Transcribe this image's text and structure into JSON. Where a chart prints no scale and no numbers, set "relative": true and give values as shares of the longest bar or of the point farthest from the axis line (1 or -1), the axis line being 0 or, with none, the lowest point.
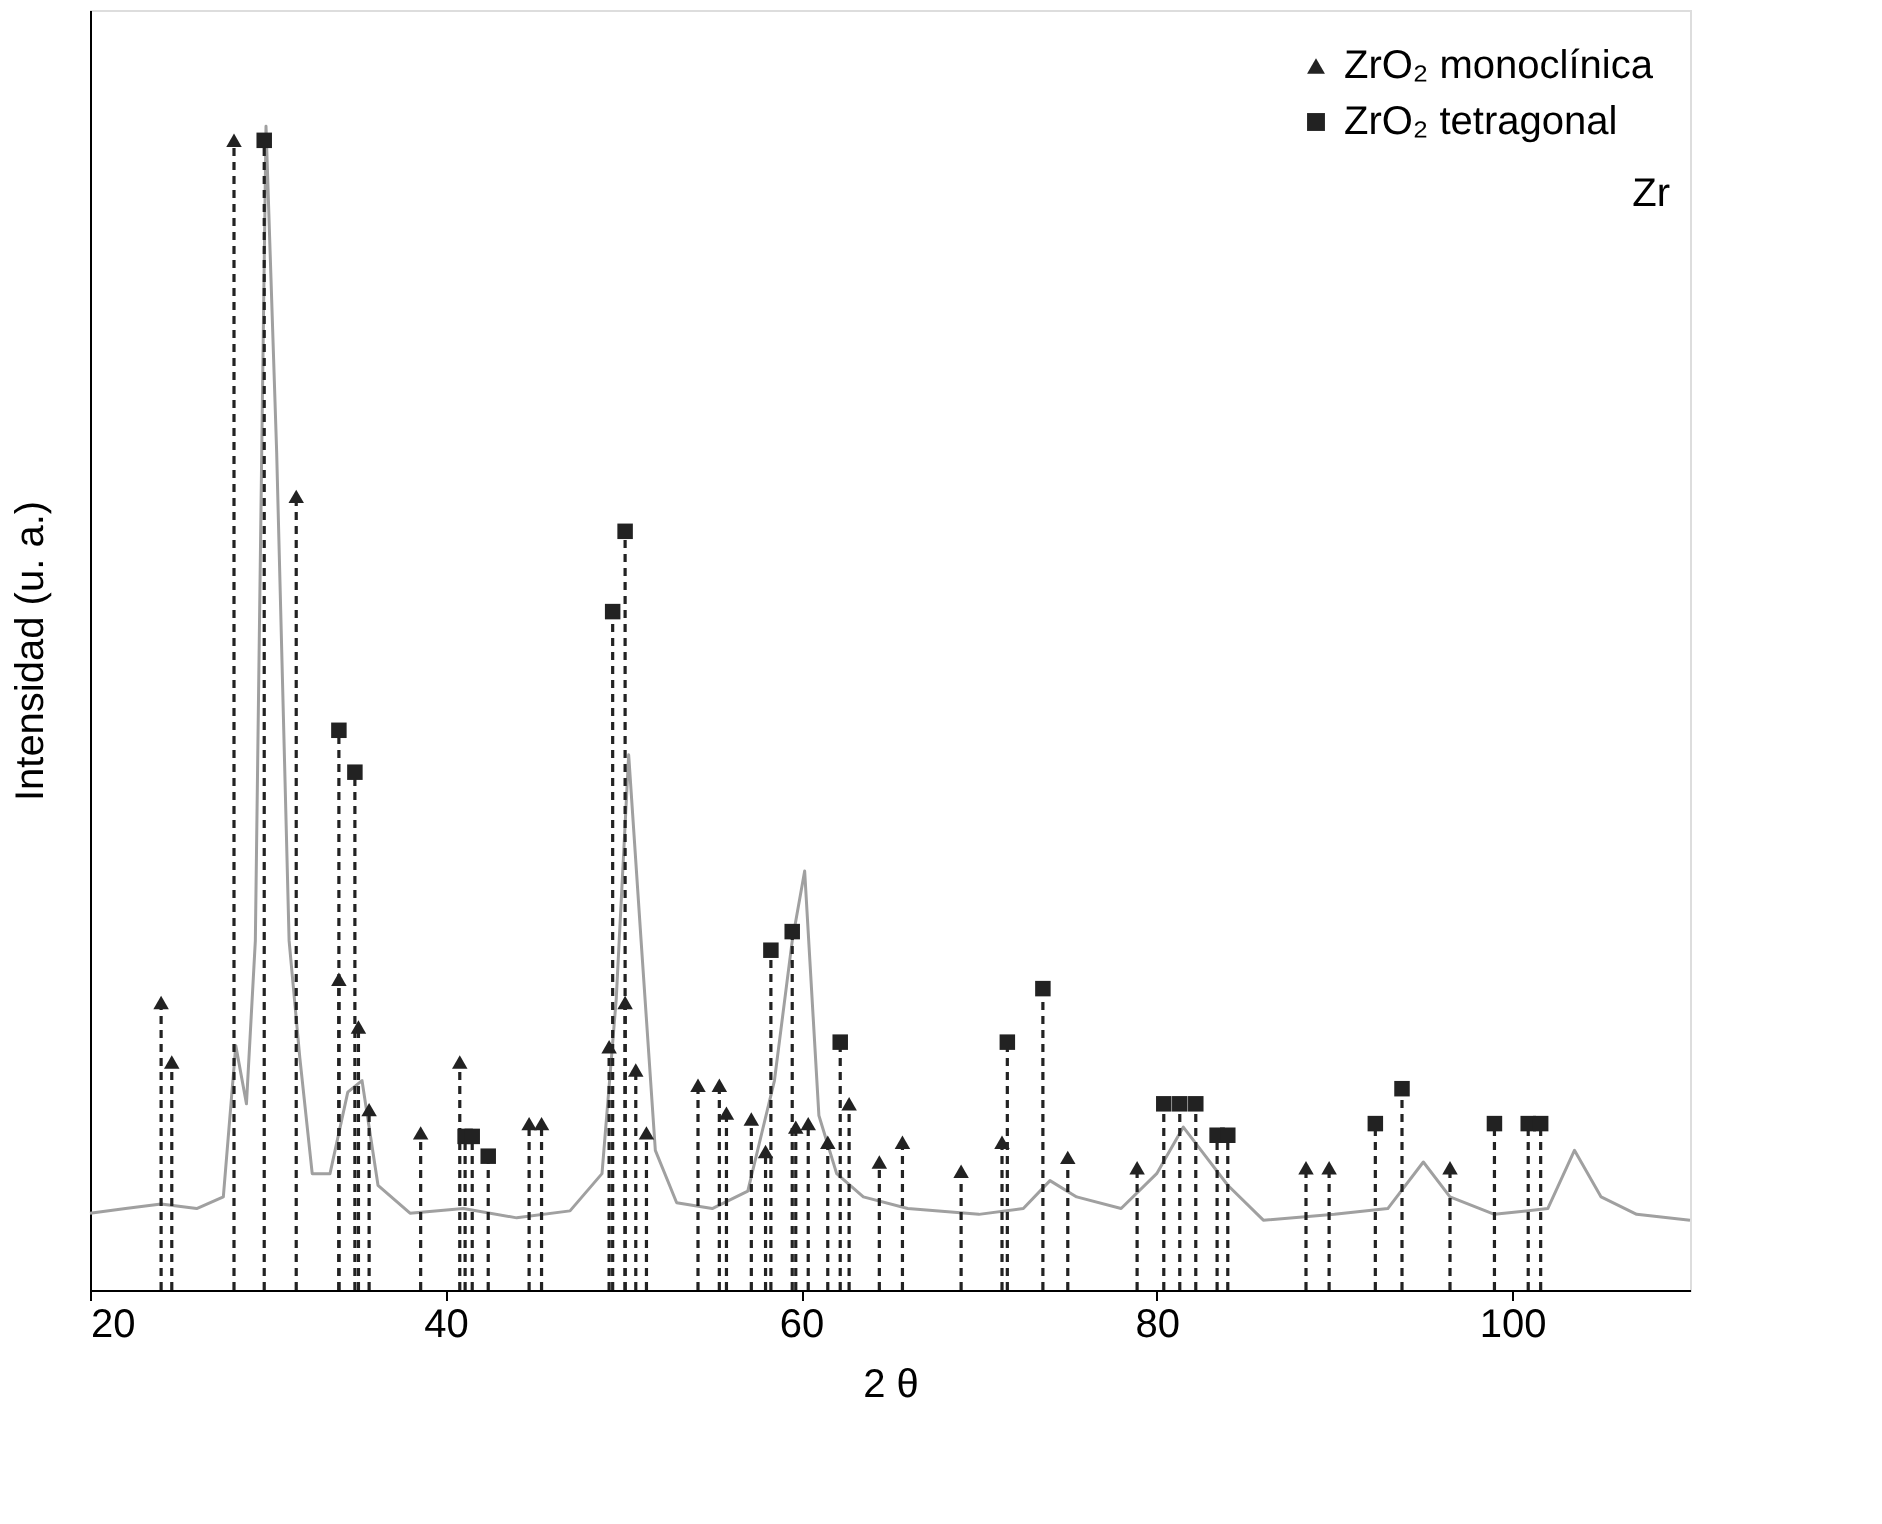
{
  "chart_data": {
    "type": "line",
    "relative": true,
    "xlabel": "2 θ",
    "ylabel": "Intensidad (u. a.)",
    "xlim": [
      20,
      110
    ],
    "xticks": [
      20,
      40,
      60,
      80,
      100
    ],
    "grid": false,
    "legend": "top right",
    "annotations": [
      "Zr"
    ],
    "series": [
      {
        "line_style": "solid",
        "color": "#a0a0a0",
        "x": [
          20,
          22,
          24,
          26,
          27.5,
          28.2,
          28.8,
          29.3,
          29.9,
          30.5,
          31.2,
          31.8,
          32.5,
          33.5,
          34.5,
          35.3,
          36.2,
          38,
          41,
          44,
          47,
          48.8,
          49.6,
          50.3,
          51,
          51.8,
          53,
          55,
          57,
          58.5,
          59.5,
          60.2,
          61,
          62,
          63.5,
          66,
          70,
          72.5,
          74,
          75.5,
          78,
          80,
          81.5,
          82.5,
          84,
          86,
          90,
          93,
          95,
          96.5,
          99,
          102,
          103.5,
          105,
          107,
          110
        ],
        "values": [
          0.066,
          0.07,
          0.074,
          0.07,
          0.08,
          0.21,
          0.16,
          0.3,
          1.0,
          0.72,
          0.3,
          0.2,
          0.1,
          0.1,
          0.17,
          0.18,
          0.09,
          0.066,
          0.07,
          0.062,
          0.068,
          0.1,
          0.25,
          0.46,
          0.3,
          0.12,
          0.075,
          0.07,
          0.085,
          0.18,
          0.3,
          0.36,
          0.15,
          0.1,
          0.08,
          0.07,
          0.065,
          0.07,
          0.094,
          0.08,
          0.07,
          0.1,
          0.14,
          0.12,
          0.09,
          0.06,
          0.065,
          0.07,
          0.11,
          0.08,
          0.065,
          0.07,
          0.12,
          0.08,
          0.065,
          0.06
        ]
      },
      {
        "name": "ZrO₂ monoclínica",
        "type": "lollipop",
        "marker": "triangle",
        "line_style": "dashed",
        "color": "#222222",
        "x": [
          24.0,
          24.6,
          28.1,
          31.6,
          34.0,
          35.1,
          35.7,
          38.6,
          40.8,
          44.7,
          45.4,
          49.2,
          50.1,
          50.7,
          51.3,
          54.2,
          55.4,
          55.8,
          57.2,
          58.0,
          59.7,
          60.4,
          61.5,
          62.7,
          64.4,
          65.7,
          69.0,
          71.3,
          75.0,
          78.9,
          88.4,
          89.7,
          96.5
        ],
        "values": [
          0.247,
          0.196,
          0.988,
          0.682,
          0.267,
          0.226,
          0.155,
          0.135,
          0.196,
          0.143,
          0.143,
          0.209,
          0.247,
          0.189,
          0.135,
          0.176,
          0.176,
          0.152,
          0.147,
          0.119,
          0.14,
          0.143,
          0.127,
          0.16,
          0.11,
          0.127,
          0.102,
          0.127,
          0.114,
          0.105,
          0.105,
          0.105,
          0.105
        ]
      },
      {
        "name": "ZrO₂ tetragonal",
        "type": "lollipop",
        "marker": "square",
        "line_style": "dashed",
        "color": "#222222",
        "x": [
          29.8,
          34.0,
          34.9,
          41.1,
          41.5,
          42.4,
          49.4,
          50.1,
          58.3,
          59.5,
          62.2,
          71.6,
          73.6,
          80.4,
          81.3,
          82.2,
          83.4,
          84.0,
          92.3,
          93.8,
          99.0,
          100.9,
          101.6
        ],
        "values": [
          0.988,
          0.481,
          0.445,
          0.132,
          0.132,
          0.115,
          0.583,
          0.652,
          0.292,
          0.308,
          0.213,
          0.213,
          0.259,
          0.16,
          0.16,
          0.16,
          0.133,
          0.133,
          0.143,
          0.173,
          0.143,
          0.143,
          0.143
        ]
      }
    ]
  }
}
